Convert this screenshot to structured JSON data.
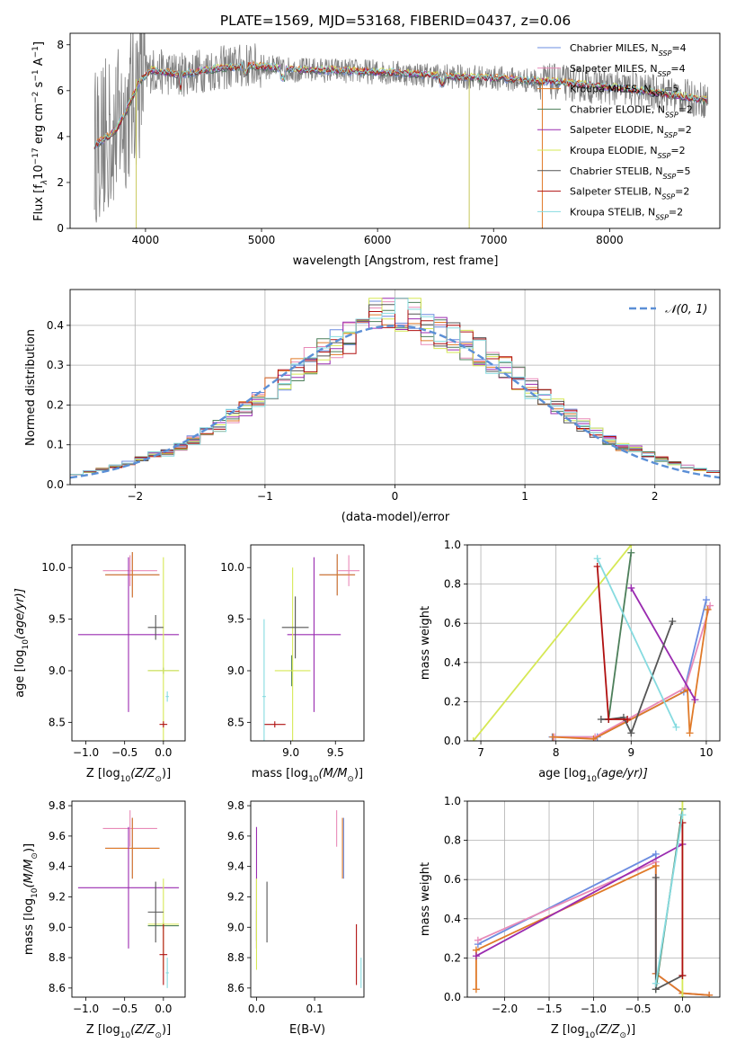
{
  "title": "PLATE=1569, MJD=53168, FIBERID=0437, z=0.06",
  "models": [
    {
      "name": "Chabrier MILES",
      "nssp": "4",
      "color": "#6b8ce0"
    },
    {
      "name": "Salpeter MILES",
      "nssp": "4",
      "color": "#e88ab8"
    },
    {
      "name": "Kroupa MILES",
      "nssp": "5",
      "color": "#e07a28"
    },
    {
      "name": "Chabrier ELODIE",
      "nssp": "2",
      "color": "#4d7f5a"
    },
    {
      "name": "Salpeter ELODIE",
      "nssp": "2",
      "color": "#9a2bb0"
    },
    {
      "name": "Kroupa ELODIE",
      "nssp": "2",
      "color": "#d6e855"
    },
    {
      "name": "Chabrier STELIB",
      "nssp": "5",
      "color": "#555555"
    },
    {
      "name": "Salpeter STELIB",
      "nssp": "2",
      "color": "#b01010"
    },
    {
      "name": "Kroupa STELIB",
      "nssp": "2",
      "color": "#86dbe0"
    }
  ],
  "legend_suffix": "N",
  "legend_sub": "SSP",
  "chart_data": [
    {
      "type": "line",
      "id": "spectrum",
      "xlabel": "wavelength [Angstrom, rest frame]",
      "ylabel": "Flux [f",
      "ylabel_sub": "λ",
      "ylabel_rest": "10",
      "ylabel_exp": "−17",
      "ylabel_units": " erg cm",
      "ylabel_units_exp": "−2",
      "ylabel_s": " s",
      "ylabel_s_exp": "−1",
      "ylabel_A": " A",
      "ylabel_A_exp": "−1",
      "ylabel_close": "]",
      "xlim": [
        3350,
        8950
      ],
      "ylim": [
        0,
        8.5
      ],
      "xticks": [
        4000,
        5000,
        6000,
        7000,
        8000
      ],
      "yticks": [
        0,
        2,
        4,
        6,
        8
      ],
      "continuum_x": [
        3550,
        3650,
        3750,
        3850,
        3950,
        4050,
        4150,
        4300,
        4500,
        4700,
        4900,
        5100,
        5300,
        5500,
        5800,
        6100,
        6400,
        6700,
        7000,
        7300,
        7600,
        7900,
        8200,
        8500,
        8800
      ],
      "continuum_y": [
        3.6,
        3.9,
        4.3,
        5.3,
        6.4,
        6.9,
        6.8,
        6.7,
        6.9,
        7.0,
        7.1,
        7.0,
        6.9,
        6.9,
        6.85,
        6.8,
        6.7,
        6.6,
        6.55,
        6.45,
        6.35,
        6.2,
        6.05,
        5.85,
        5.6
      ]
    },
    {
      "type": "step",
      "id": "residuals",
      "xlabel": "(data-model)/error",
      "ylabel": "Normed distribution",
      "xlim": [
        -2.5,
        2.5
      ],
      "ylim": [
        0,
        0.49
      ],
      "xticks": [
        -2,
        -1,
        0,
        1,
        2
      ],
      "xtick_labels": [
        "−2",
        "−1",
        "0",
        "1",
        "2"
      ],
      "yticks": [
        0,
        0.1,
        0.2,
        0.3,
        0.4
      ],
      "ytick_labels": [
        "0.0",
        "0.1",
        "0.2",
        "0.3",
        "0.4"
      ],
      "legend": "𝒩(0, 1)",
      "legend_color": "#5b8fd6"
    },
    {
      "type": "scatter",
      "id": "z_age",
      "xlabel": "Z [log",
      "xlabel_sub": "10",
      "xlabel_rest": "(Z/Z",
      "xlabel_sun": "⊙",
      "xlabel_close": ")]",
      "ylabel": "age  [log",
      "ylabel_sub": "10",
      "ylabel_rest": "(age/yr)]",
      "xlim": [
        -1.18,
        0.28
      ],
      "ylim": [
        8.32,
        10.22
      ],
      "xticks": [
        -1.0,
        -0.5,
        0.0
      ],
      "xtick_labels": [
        "−1.0",
        "−0.5",
        "0.0"
      ],
      "yticks": [
        8.5,
        9.0,
        9.5,
        10.0
      ],
      "ytick_labels": [
        "8.5",
        "9.0",
        "9.5",
        "10.0"
      ],
      "points": [
        {
          "x": -0.4,
          "y": 9.93,
          "xe": 0.35,
          "ye": 0.22,
          "c": "#6b8ce0"
        },
        {
          "x": -0.43,
          "y": 9.97,
          "xe": 0.35,
          "ye": 0.15,
          "c": "#e88ab8"
        },
        {
          "x": -0.4,
          "y": 9.93,
          "xe": 0.35,
          "ye": 0.22,
          "c": "#e07a28"
        },
        {
          "x": 0.0,
          "y": 9.0,
          "xe": 0.2,
          "ye": 0.03,
          "c": "#4d7f5a"
        },
        {
          "x": -0.45,
          "y": 9.35,
          "xe": 0.65,
          "ye": 0.75,
          "c": "#9a2bb0"
        },
        {
          "x": 0.0,
          "y": 9.0,
          "xe": 0.2,
          "ye": 1.1,
          "c": "#d6e855"
        },
        {
          "x": -0.1,
          "y": 9.42,
          "xe": 0.1,
          "ye": 0.12,
          "c": "#555555"
        },
        {
          "x": -0.0,
          "y": 8.48,
          "xe": 0.05,
          "ye": 0.03,
          "c": "#b01010"
        },
        {
          "x": 0.05,
          "y": 8.75,
          "xe": 0.02,
          "ye": 0.05,
          "c": "#86dbe0"
        }
      ]
    },
    {
      "type": "scatter",
      "id": "mass_age",
      "xlabel": "mass [log",
      "xlabel_sub": "10",
      "xlabel_rest": "(M/M",
      "xlabel_sun": "⊙",
      "xlabel_close": ")]",
      "xlim": [
        8.55,
        9.82
      ],
      "ylim": [
        8.32,
        10.22
      ],
      "xticks": [
        9.0,
        9.5
      ],
      "xtick_labels": [
        "9.0",
        "9.5"
      ],
      "yticks": [
        8.5,
        9.0,
        9.5,
        10.0
      ],
      "ytick_labels": [
        "8.5",
        "9.0",
        "9.5",
        "10.0"
      ],
      "points": [
        {
          "x": 9.52,
          "y": 9.93,
          "xe": 0.2,
          "ye": 0.2,
          "c": "#6b8ce0"
        },
        {
          "x": 9.65,
          "y": 9.97,
          "xe": 0.12,
          "ye": 0.15,
          "c": "#e88ab8"
        },
        {
          "x": 9.52,
          "y": 9.93,
          "xe": 0.2,
          "ye": 0.2,
          "c": "#e07a28"
        },
        {
          "x": 9.01,
          "y": 9.0,
          "xe": 0.02,
          "ye": 0.15,
          "c": "#4d7f5a"
        },
        {
          "x": 9.26,
          "y": 9.35,
          "xe": 0.3,
          "ye": 0.75,
          "c": "#9a2bb0"
        },
        {
          "x": 9.02,
          "y": 9.0,
          "xe": 0.2,
          "ye": 1.0,
          "c": "#d6e855"
        },
        {
          "x": 9.05,
          "y": 9.42,
          "xe": 0.15,
          "ye": 0.3,
          "c": "#555555"
        },
        {
          "x": 8.82,
          "y": 8.48,
          "xe": 0.12,
          "ye": 0.03,
          "c": "#b01010"
        },
        {
          "x": 8.7,
          "y": 8.75,
          "xe": 0.02,
          "ye": 0.75,
          "c": "#86dbe0"
        }
      ]
    },
    {
      "type": "line",
      "id": "age_weight",
      "xlabel": "age  [log",
      "xlabel_sub": "10",
      "xlabel_rest": "(age/yr)]",
      "ylabel": "mass weight",
      "xlim": [
        6.82,
        10.18
      ],
      "ylim": [
        0,
        1.0
      ],
      "xticks": [
        7,
        8,
        9,
        10
      ],
      "xtick_labels": [
        "7",
        "8",
        "9",
        "10"
      ],
      "yticks": [
        0,
        0.2,
        0.4,
        0.6,
        0.8,
        1.0
      ],
      "ytick_labels": [
        "0.0",
        "0.2",
        "0.4",
        "0.6",
        "0.8",
        "1.0"
      ],
      "series": [
        {
          "c": "#6b8ce0",
          "x": [
            7.95,
            8.55,
            9.7,
            10.0
          ],
          "y": [
            0.02,
            0.02,
            0.25,
            0.72
          ]
        },
        {
          "c": "#e88ab8",
          "x": [
            7.98,
            8.52,
            9.72,
            10.05
          ],
          "y": [
            0.02,
            0.02,
            0.27,
            0.69
          ]
        },
        {
          "c": "#e07a28",
          "x": [
            7.96,
            8.5,
            9.75,
            9.78,
            10.02
          ],
          "y": [
            0.02,
            0.01,
            0.26,
            0.04,
            0.67
          ]
        },
        {
          "c": "#4d7f5a",
          "x": [
            8.7,
            9.0
          ],
          "y": [
            0.11,
            0.96
          ]
        },
        {
          "c": "#9a2bb0",
          "x": [
            9.0,
            9.85
          ],
          "y": [
            0.78,
            0.21
          ]
        },
        {
          "c": "#d6e855",
          "x": [
            6.9,
            9.0
          ],
          "y": [
            0.0,
            1.0
          ]
        },
        {
          "c": "#555555",
          "x": [
            8.6,
            8.7,
            8.9,
            9.0,
            9.55
          ],
          "y": [
            0.11,
            0.11,
            0.12,
            0.04,
            0.61
          ]
        },
        {
          "c": "#b01010",
          "x": [
            8.55,
            8.7,
            8.95
          ],
          "y": [
            0.89,
            0.11,
            0.11
          ]
        },
        {
          "c": "#86dbe0",
          "x": [
            8.55,
            9.6
          ],
          "y": [
            0.93,
            0.07
          ]
        }
      ]
    },
    {
      "type": "scatter",
      "id": "z_mass",
      "xlabel": "Z [log",
      "xlabel_sub": "10",
      "xlabel_rest": "(Z/Z",
      "xlabel_sun": "⊙",
      "xlabel_close": ")]",
      "ylabel": "mass [log",
      "ylabel_sub": "10",
      "ylabel_rest": "(M/M",
      "ylabel_sun": "⊙",
      "ylabel_close": ")]",
      "xlim": [
        -1.18,
        0.28
      ],
      "ylim": [
        8.54,
        9.83
      ],
      "xticks": [
        -1.0,
        -0.5,
        0.0
      ],
      "xtick_labels": [
        "−1.0",
        "−0.5",
        "0.0"
      ],
      "yticks": [
        8.6,
        8.8,
        9.0,
        9.2,
        9.4,
        9.6,
        9.8
      ],
      "ytick_labels": [
        "8.6",
        "8.8",
        "9.0",
        "9.2",
        "9.4",
        "9.6",
        "9.8"
      ],
      "points": [
        {
          "x": -0.4,
          "y": 9.52,
          "xe": 0.35,
          "ye": 0.2,
          "c": "#6b8ce0"
        },
        {
          "x": -0.43,
          "y": 9.65,
          "xe": 0.35,
          "ye": 0.12,
          "c": "#e88ab8"
        },
        {
          "x": -0.4,
          "y": 9.52,
          "xe": 0.35,
          "ye": 0.2,
          "c": "#e07a28"
        },
        {
          "x": 0.0,
          "y": 9.01,
          "xe": 0.2,
          "ye": 0.02,
          "c": "#4d7f5a"
        },
        {
          "x": -0.45,
          "y": 9.26,
          "xe": 0.65,
          "ye": 0.4,
          "c": "#9a2bb0"
        },
        {
          "x": 0.0,
          "y": 9.02,
          "xe": 0.2,
          "ye": 0.3,
          "c": "#d6e855"
        },
        {
          "x": -0.1,
          "y": 9.1,
          "xe": 0.1,
          "ye": 0.2,
          "c": "#555555"
        },
        {
          "x": -0.0,
          "y": 8.82,
          "xe": 0.05,
          "ye": 0.2,
          "c": "#b01010"
        },
        {
          "x": 0.05,
          "y": 8.7,
          "xe": 0.02,
          "ye": 0.1,
          "c": "#86dbe0"
        }
      ]
    },
    {
      "type": "scatter",
      "id": "ebv_mass",
      "xlabel": "E(B-V)",
      "xlim": [
        -0.01,
        0.185
      ],
      "ylim": [
        8.54,
        9.83
      ],
      "xticks": [
        0.0,
        0.1
      ],
      "xtick_labels": [
        "0.0",
        "0.1"
      ],
      "yticks": [
        8.6,
        8.8,
        9.0,
        9.2,
        9.4,
        9.6,
        9.8
      ],
      "ytick_labels": [
        "8.6",
        "8.8",
        "9.0",
        "9.2",
        "9.4",
        "9.6",
        "9.8"
      ],
      "points": [
        {
          "x": 0.15,
          "y": 9.52,
          "xe": 0,
          "ye": 0.2,
          "c": "#6b8ce0"
        },
        {
          "x": 0.138,
          "y": 9.65,
          "xe": 0,
          "ye": 0.12,
          "c": "#e88ab8"
        },
        {
          "x": 0.148,
          "y": 9.52,
          "xe": 0,
          "ye": 0.2,
          "c": "#e07a28"
        },
        {
          "x": 0.0,
          "y": 9.01,
          "xe": 0,
          "ye": 0.1,
          "c": "#4d7f5a"
        },
        {
          "x": 0.0,
          "y": 9.26,
          "xe": 0,
          "ye": 0.4,
          "c": "#9a2bb0"
        },
        {
          "x": 0.0,
          "y": 9.02,
          "xe": 0,
          "ye": 0.3,
          "c": "#d6e855"
        },
        {
          "x": 0.018,
          "y": 9.1,
          "xe": 0,
          "ye": 0.2,
          "c": "#555555"
        },
        {
          "x": 0.172,
          "y": 8.82,
          "xe": 0,
          "ye": 0.2,
          "c": "#b01010"
        },
        {
          "x": 0.18,
          "y": 8.7,
          "xe": 0,
          "ye": 0.1,
          "c": "#86dbe0"
        }
      ]
    },
    {
      "type": "line",
      "id": "z_weight",
      "xlabel": "Z [log",
      "xlabel_sub": "10",
      "xlabel_rest": "(Z/Z",
      "xlabel_sun": "⊙",
      "xlabel_close": ")]",
      "ylabel": "mass weight",
      "xlim": [
        -2.42,
        0.42
      ],
      "ylim": [
        0,
        1.0
      ],
      "xticks": [
        -2.0,
        -1.5,
        -1.0,
        -0.5,
        0.0
      ],
      "xtick_labels": [
        "−2.0",
        "−1.5",
        "−1.0",
        "−0.5",
        "0.0"
      ],
      "yticks": [
        0,
        0.2,
        0.4,
        0.6,
        0.8,
        1.0
      ],
      "ytick_labels": [
        "0.0",
        "0.2",
        "0.4",
        "0.6",
        "0.8",
        "1.0"
      ],
      "series": [
        {
          "c": "#6b8ce0",
          "x": [
            -2.3,
            -0.3,
            -0.3,
            0.0,
            0.3
          ],
          "y": [
            0.27,
            0.73,
            0.12,
            0.02,
            0.01
          ]
        },
        {
          "c": "#e88ab8",
          "x": [
            -2.3,
            -0.3,
            -0.3,
            0.0,
            0.3
          ],
          "y": [
            0.29,
            0.69,
            0.12,
            0.02,
            0.01
          ]
        },
        {
          "c": "#e07a28",
          "x": [
            -2.32,
            -2.32,
            -0.3,
            -0.3,
            0.0,
            0.3
          ],
          "y": [
            0.04,
            0.24,
            0.67,
            0.12,
            0.02,
            0.01
          ]
        },
        {
          "c": "#4d7f5a",
          "x": [
            -0.3,
            0.0
          ],
          "y": [
            0.04,
            0.96
          ]
        },
        {
          "c": "#9a2bb0",
          "x": [
            -2.32,
            0.0
          ],
          "y": [
            0.21,
            0.78
          ]
        },
        {
          "c": "#d6e855",
          "x": [
            0.0,
            0.0
          ],
          "y": [
            0.0,
            1.0
          ]
        },
        {
          "c": "#555555",
          "x": [
            -0.3,
            -0.3,
            0.0
          ],
          "y": [
            0.61,
            0.04,
            0.11
          ]
        },
        {
          "c": "#b01010",
          "x": [
            0.0,
            0.0
          ],
          "y": [
            0.11,
            0.89
          ]
        },
        {
          "c": "#86dbe0",
          "x": [
            -0.3,
            0.0
          ],
          "y": [
            0.07,
            0.93
          ]
        }
      ]
    }
  ]
}
